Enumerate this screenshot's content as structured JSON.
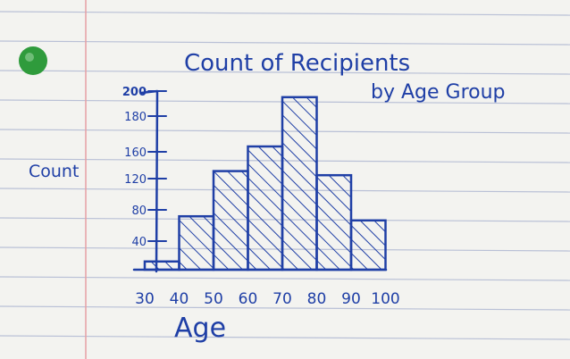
{
  "chart_data": {
    "type": "bar",
    "title": "Count of Recipients",
    "subtitle": "by Age Group",
    "xlabel": "Age",
    "ylabel": "Count",
    "x_ticks": [
      "30",
      "40",
      "50",
      "60",
      "70",
      "80",
      "90",
      "100"
    ],
    "y_ticks": [
      "40",
      "80",
      "120",
      "160",
      "180",
      "200"
    ],
    "bins": [
      {
        "from": 30,
        "to": 40,
        "count": 10
      },
      {
        "from": 40,
        "to": 50,
        "count": 65
      },
      {
        "from": 50,
        "to": 60,
        "count": 120
      },
      {
        "from": 60,
        "to": 70,
        "count": 150
      },
      {
        "from": 70,
        "to": 80,
        "count": 210
      },
      {
        "from": 80,
        "to": 90,
        "count": 115
      },
      {
        "from": 90,
        "to": 100,
        "count": 60
      }
    ],
    "ylim": [
      0,
      200
    ],
    "hatched": true,
    "ink_color": "#1f3fa6"
  }
}
